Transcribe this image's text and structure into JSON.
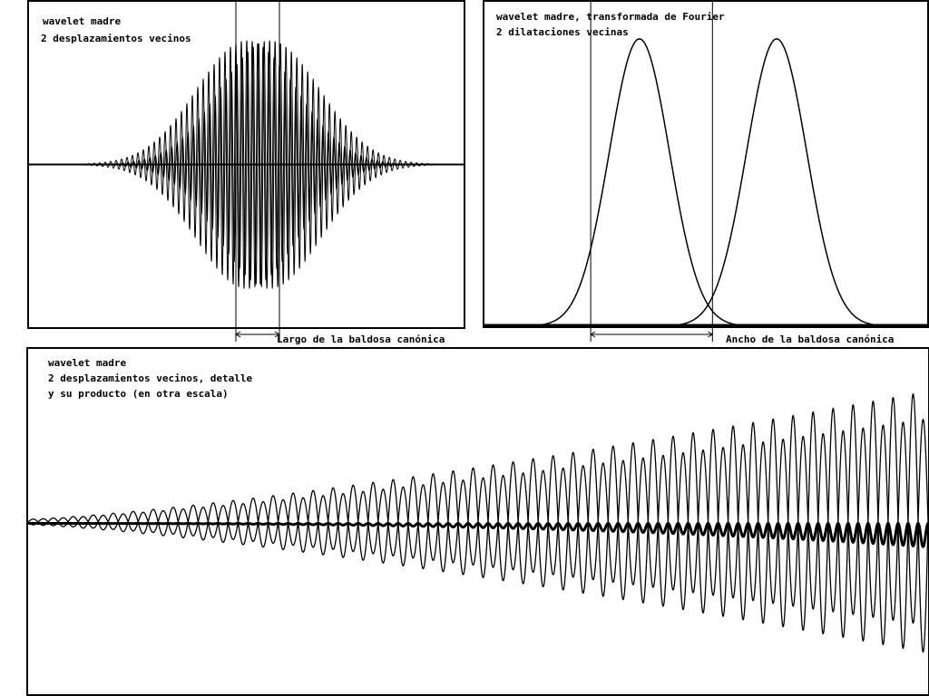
{
  "panels": {
    "top_left": {
      "line1": "wavelet madre",
      "line2": "2 desplazamientos vecinos",
      "annotation": "Largo de la baldosa canónica"
    },
    "top_right": {
      "line1": "wavelet madre, transformada de Fourier",
      "line2": "2 dilataciones vecinas",
      "annotation": "Ancho de la baldosa canónica"
    },
    "bottom": {
      "line1": "wavelet madre",
      "line2": "2 desplazamientos vecinos, detalle",
      "line3": "y su producto (en otra escala)"
    }
  },
  "chart_data": [
    {
      "type": "line",
      "title": "wavelet madre",
      "subtitle": "2 desplazamientos vecinos",
      "series": [
        {
          "kind": "gaussian-modulated-oscillation",
          "center": 0.0,
          "amplitude": 1.0,
          "sigma": 0.23,
          "cycles": 80
        },
        {
          "kind": "gaussian-modulated-oscillation",
          "center": 0.105,
          "amplitude": 1.0,
          "sigma": 0.23,
          "cycles": 80
        }
      ],
      "xlim": [
        -1,
        1
      ],
      "ylim": [
        -1.05,
        1.05
      ],
      "markers": [
        -0.05,
        0.15
      ],
      "annotation": "Largo de la baldosa canónica"
    },
    {
      "type": "line",
      "title": "wavelet madre, transformada de Fourier",
      "subtitle": "2 dilataciones vecinas",
      "series": [
        {
          "kind": "gaussian",
          "center": 0.35,
          "amplitude": 1.0,
          "sigma": 0.068
        },
        {
          "kind": "gaussian",
          "center": 0.66,
          "amplitude": 1.0,
          "sigma": 0.068
        }
      ],
      "xlim": [
        0,
        1
      ],
      "ylim": [
        0,
        1.05
      ],
      "markers": [
        0.24,
        0.515
      ],
      "annotation": "Ancho de la baldosa canónica"
    },
    {
      "type": "line",
      "title": "wavelet madre",
      "subtitle": "2 desplazamientos vecinos, detalle",
      "note": "y su producto (en otra escala)",
      "series": [
        {
          "kind": "detail-oscillation",
          "envelope_start": 0.02,
          "envelope_end": 0.95,
          "cycles": 45,
          "phase": 0.0
        },
        {
          "kind": "detail-oscillation",
          "envelope_start": 0.02,
          "envelope_end": 0.75,
          "cycles": 45,
          "phase": 0.5
        },
        {
          "kind": "product",
          "scale": 0.08
        }
      ],
      "xlim": [
        0,
        1
      ],
      "ylim": [
        -1,
        1
      ]
    }
  ]
}
